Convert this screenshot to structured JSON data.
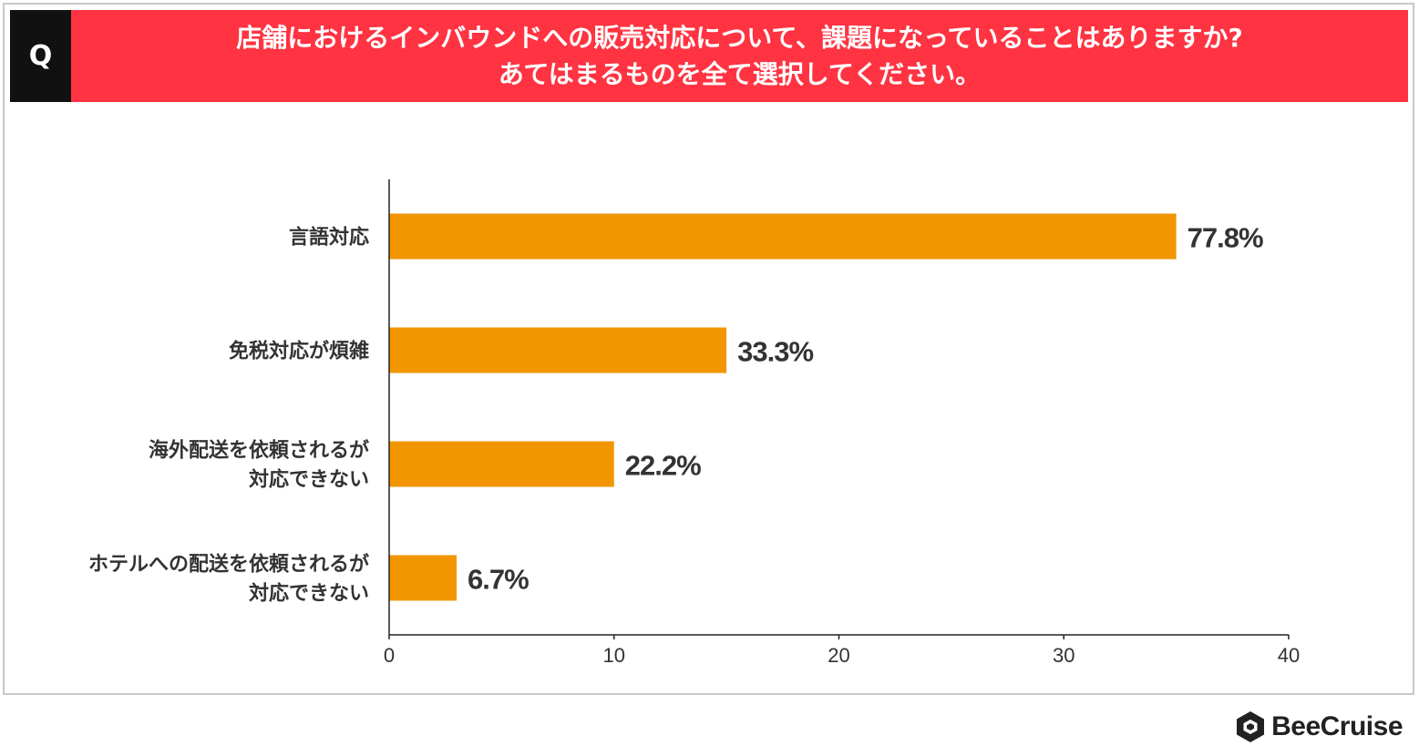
{
  "header": {
    "q_label": "Q",
    "title_line1": "店舗におけるインバウンドへの販売対応について、課題になっていることはありますか?",
    "title_line2": "あてはまるものを全て選択してください。"
  },
  "colors": {
    "header_bg": "#ff3341",
    "q_bg": "#111111",
    "bar": "#f29600",
    "text": "#333333"
  },
  "chart_data": {
    "type": "bar",
    "orientation": "horizontal",
    "title": "店舗におけるインバウンドへの販売対応について、課題になっていることはありますか? あてはまるものを全て選択してください。",
    "categories": [
      [
        "言語対応"
      ],
      [
        "免税対応が煩雑"
      ],
      [
        "海外配送を依頼されるが",
        "対応できない"
      ],
      [
        "ホテルへの配送を依頼されるが",
        "対応できない"
      ]
    ],
    "values": [
      35,
      15,
      10,
      3
    ],
    "value_labels": [
      "77.8%",
      "33.3%",
      "22.2%",
      "6.7%"
    ],
    "xlim": [
      0,
      40
    ],
    "xticks": [
      "0",
      "10",
      "20",
      "30",
      "40"
    ],
    "xlabel": "",
    "ylabel": "",
    "grid": false,
    "legend": "none"
  },
  "footer": {
    "brand": "BeeCruise",
    "brand_icon": "hexagon-logo-icon"
  }
}
